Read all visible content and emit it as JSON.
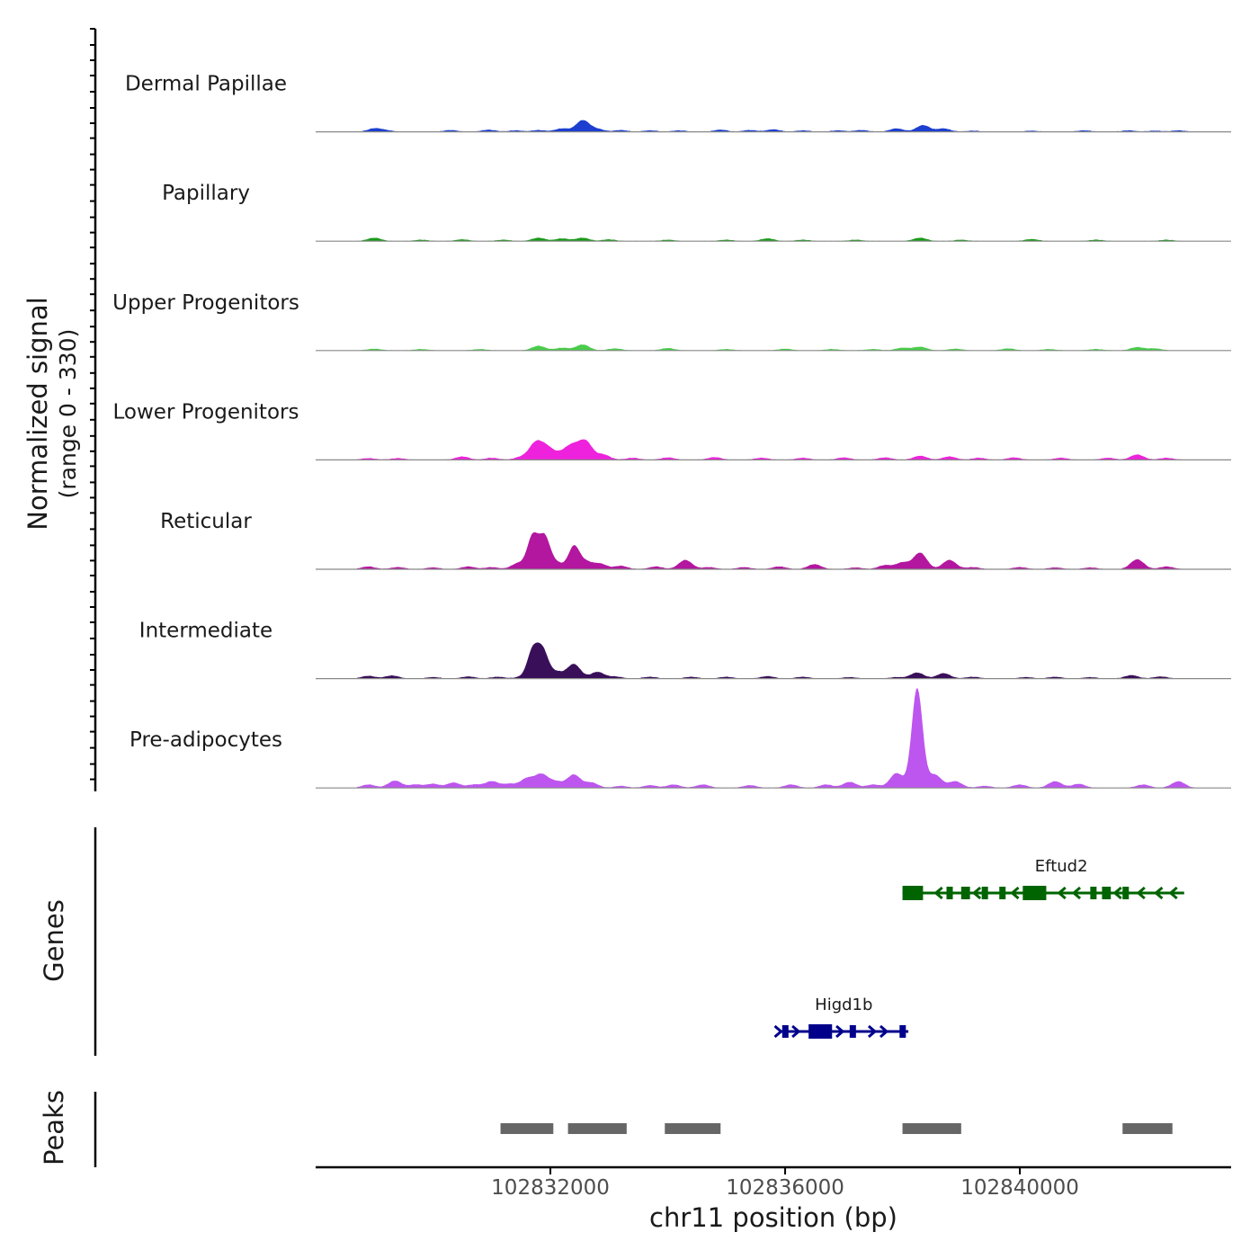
{
  "chart_data": {
    "type": "area",
    "title": "",
    "ylabel": [
      "Normalized signal",
      "(range 0 - 330)"
    ],
    "yrange": [
      0,
      330
    ],
    "xlabel": "chr11 position (bp)",
    "xlim": [
      102828000,
      102843600
    ],
    "xticks": [
      102832000,
      102836000,
      102840000
    ],
    "tick_labels": [
      "102832000",
      "102836000",
      "102840000"
    ],
    "tracks": [
      {
        "name": "Dermal Papillae",
        "color": "#1c3fd0",
        "peaks": [
          [
            102829000,
            10
          ],
          [
            102829200,
            4
          ],
          [
            102830300,
            5
          ],
          [
            102830950,
            6
          ],
          [
            102831400,
            4
          ],
          [
            102831800,
            5
          ],
          [
            102832200,
            10
          ],
          [
            102832550,
            35
          ],
          [
            102832800,
            8
          ],
          [
            102833200,
            5
          ],
          [
            102833700,
            4
          ],
          [
            102834200,
            4
          ],
          [
            102834900,
            6
          ],
          [
            102835400,
            5
          ],
          [
            102835800,
            7
          ],
          [
            102836300,
            4
          ],
          [
            102836900,
            4
          ],
          [
            102837300,
            5
          ],
          [
            102837900,
            10
          ],
          [
            102838350,
            20
          ],
          [
            102838700,
            10
          ],
          [
            102839200,
            3
          ],
          [
            102840200,
            3
          ],
          [
            102841100,
            4
          ],
          [
            102841850,
            4
          ],
          [
            102842300,
            3
          ],
          [
            102842700,
            4
          ]
        ]
      },
      {
        "name": "Papillary",
        "color": "#1a9a1a",
        "peaks": [
          [
            102829000,
            10
          ],
          [
            102829800,
            4
          ],
          [
            102830500,
            5
          ],
          [
            102831200,
            4
          ],
          [
            102831800,
            10
          ],
          [
            102832200,
            8
          ],
          [
            102832550,
            10
          ],
          [
            102833000,
            5
          ],
          [
            102834000,
            4
          ],
          [
            102835000,
            4
          ],
          [
            102835700,
            8
          ],
          [
            102836300,
            4
          ],
          [
            102837200,
            4
          ],
          [
            102838300,
            10
          ],
          [
            102839000,
            4
          ],
          [
            102840200,
            6
          ],
          [
            102841300,
            4
          ],
          [
            102842500,
            4
          ]
        ]
      },
      {
        "name": "Upper Progenitors",
        "color": "#4bcc4b",
        "peaks": [
          [
            102829000,
            5
          ],
          [
            102829800,
            4
          ],
          [
            102830800,
            4
          ],
          [
            102831800,
            14
          ],
          [
            102832200,
            8
          ],
          [
            102832550,
            18
          ],
          [
            102833100,
            6
          ],
          [
            102834000,
            7
          ],
          [
            102835000,
            4
          ],
          [
            102836000,
            5
          ],
          [
            102836800,
            4
          ],
          [
            102837500,
            4
          ],
          [
            102838000,
            8
          ],
          [
            102838300,
            11
          ],
          [
            102838900,
            5
          ],
          [
            102839800,
            6
          ],
          [
            102840500,
            4
          ],
          [
            102841300,
            4
          ],
          [
            102842000,
            10
          ],
          [
            102842300,
            6
          ]
        ]
      },
      {
        "name": "Lower Progenitors",
        "color": "#ee22dd",
        "peaks": [
          [
            102828900,
            5
          ],
          [
            102829400,
            5
          ],
          [
            102830500,
            10
          ],
          [
            102831000,
            6
          ],
          [
            102831500,
            8
          ],
          [
            102831750,
            50
          ],
          [
            102831950,
            34
          ],
          [
            102832200,
            18
          ],
          [
            102832380,
            38
          ],
          [
            102832600,
            55
          ],
          [
            102832900,
            16
          ],
          [
            102833400,
            6
          ],
          [
            102834000,
            7
          ],
          [
            102834800,
            8
          ],
          [
            102835600,
            6
          ],
          [
            102836300,
            6
          ],
          [
            102837000,
            7
          ],
          [
            102837700,
            7
          ],
          [
            102838300,
            12
          ],
          [
            102838800,
            10
          ],
          [
            102839300,
            6
          ],
          [
            102839900,
            7
          ],
          [
            102840700,
            6
          ],
          [
            102841500,
            6
          ],
          [
            102842000,
            16
          ],
          [
            102842500,
            6
          ]
        ]
      },
      {
        "name": "Reticular",
        "color": "#b3169f",
        "peaks": [
          [
            102828900,
            8
          ],
          [
            102829400,
            6
          ],
          [
            102830000,
            5
          ],
          [
            102830600,
            8
          ],
          [
            102831000,
            6
          ],
          [
            102831450,
            18
          ],
          [
            102831700,
            100
          ],
          [
            102831900,
            95
          ],
          [
            102832100,
            20
          ],
          [
            102832400,
            68
          ],
          [
            102832600,
            22
          ],
          [
            102832850,
            16
          ],
          [
            102833200,
            10
          ],
          [
            102833800,
            8
          ],
          [
            102834300,
            28
          ],
          [
            102834700,
            6
          ],
          [
            102835300,
            6
          ],
          [
            102835900,
            8
          ],
          [
            102836500,
            15
          ],
          [
            102837200,
            5
          ],
          [
            102837700,
            12
          ],
          [
            102838000,
            20
          ],
          [
            102838300,
            50
          ],
          [
            102838800,
            28
          ],
          [
            102839200,
            6
          ],
          [
            102840000,
            6
          ],
          [
            102840600,
            5
          ],
          [
            102841200,
            5
          ],
          [
            102842000,
            30
          ],
          [
            102842500,
            8
          ]
        ]
      },
      {
        "name": "Intermediate",
        "color": "#3a0f5a",
        "peaks": [
          [
            102828900,
            8
          ],
          [
            102829300,
            9
          ],
          [
            102830000,
            4
          ],
          [
            102830600,
            6
          ],
          [
            102831100,
            5
          ],
          [
            102831500,
            4
          ],
          [
            102831700,
            85
          ],
          [
            102831870,
            82
          ],
          [
            102832100,
            20
          ],
          [
            102832400,
            44
          ],
          [
            102832800,
            20
          ],
          [
            102833100,
            6
          ],
          [
            102833700,
            5
          ],
          [
            102834400,
            5
          ],
          [
            102835000,
            5
          ],
          [
            102835700,
            7
          ],
          [
            102836300,
            5
          ],
          [
            102837100,
            4
          ],
          [
            102837900,
            4
          ],
          [
            102838250,
            18
          ],
          [
            102838700,
            16
          ],
          [
            102839200,
            5
          ],
          [
            102840100,
            4
          ],
          [
            102840600,
            5
          ],
          [
            102841200,
            4
          ],
          [
            102841900,
            10
          ],
          [
            102842400,
            6
          ]
        ]
      },
      {
        "name": "Pre-adipocytes",
        "color": "#bd55ef",
        "peaks": [
          [
            102828900,
            10
          ],
          [
            102829350,
            22
          ],
          [
            102829700,
            10
          ],
          [
            102830000,
            12
          ],
          [
            102830350,
            16
          ],
          [
            102830700,
            10
          ],
          [
            102831000,
            20
          ],
          [
            102831300,
            12
          ],
          [
            102831600,
            28
          ],
          [
            102831850,
            40
          ],
          [
            102832100,
            18
          ],
          [
            102832400,
            40
          ],
          [
            102832700,
            16
          ],
          [
            102833200,
            6
          ],
          [
            102833700,
            8
          ],
          [
            102834100,
            10
          ],
          [
            102834600,
            10
          ],
          [
            102835400,
            8
          ],
          [
            102836100,
            10
          ],
          [
            102836700,
            10
          ],
          [
            102837100,
            18
          ],
          [
            102837500,
            10
          ],
          [
            102837900,
            45
          ],
          [
            102838250,
            305
          ],
          [
            102838550,
            40
          ],
          [
            102838900,
            20
          ],
          [
            102839400,
            6
          ],
          [
            102840000,
            10
          ],
          [
            102840600,
            20
          ],
          [
            102841000,
            12
          ],
          [
            102842100,
            10
          ],
          [
            102842700,
            20
          ]
        ]
      }
    ],
    "genes": [
      {
        "name": "Eftud2",
        "strand": "-",
        "color": "#006400",
        "start": 102838000,
        "end": 102842800,
        "exons": [
          [
            102838000,
            102838350
          ],
          [
            102838750,
            102838850
          ],
          [
            102839000,
            102839150
          ],
          [
            102839350,
            102839450
          ],
          [
            102839650,
            102839750
          ],
          [
            102840050,
            102840450
          ],
          [
            102841200,
            102841300
          ],
          [
            102841400,
            102841550
          ],
          [
            102841750,
            102841850
          ]
        ],
        "arrows": [
          102838600,
          102839250,
          102839900,
          102840700,
          102840950,
          102841650,
          102842050,
          102842350,
          102842600
        ]
      },
      {
        "name": "Higd1b",
        "strand": "+",
        "color": "#00008b",
        "start": 102835900,
        "end": 102838100,
        "exons": [
          [
            102835950,
            102836050
          ],
          [
            102836400,
            102836800
          ],
          [
            102837100,
            102837200
          ],
          [
            102837950,
            102838050
          ]
        ],
        "arrows": [
          102835900,
          102836200,
          102836950,
          102837500,
          102837700
        ]
      }
    ],
    "peaks_track": {
      "name": "Peaks",
      "color": "#666666",
      "regions": [
        [
          102831150,
          102832050
        ],
        [
          102832300,
          102833300
        ],
        [
          102833950,
          102834900
        ],
        [
          102838000,
          102839000
        ],
        [
          102841750,
          102842600
        ]
      ]
    },
    "panel_labels": {
      "genes": "Genes",
      "peaks": "Peaks"
    }
  }
}
